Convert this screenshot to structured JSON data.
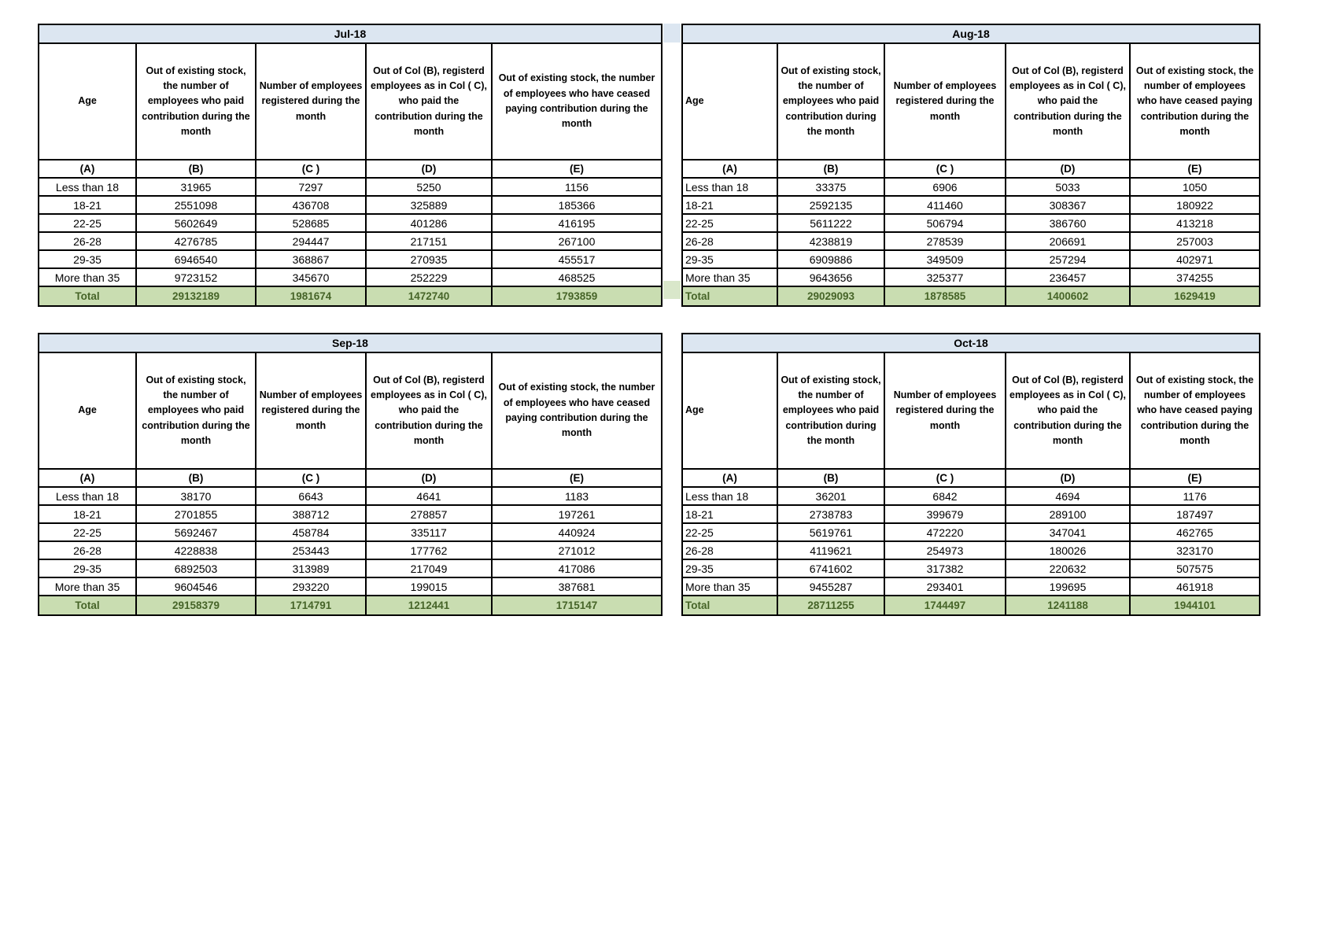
{
  "colors": {
    "title_bg": "#dce6f1",
    "total_bg": "#c9ddb1",
    "total_text": "#466428",
    "gap_total_strip": "#d9e7ca",
    "border": "#000000"
  },
  "table_template": {
    "age_header": "Age",
    "column_headers": [
      "Out of existing stock, the number of employees who paid contribution during the month",
      "Number of employees registered during the month",
      "Out of Col (B), registerd employees as in Col ( C), who paid the contribution during the month",
      "Out of existing stock, the number of employees who have ceased paying contribution during the month"
    ],
    "column_letters": [
      "(A)",
      "(B)",
      "(C )",
      "(D)",
      "(E)"
    ],
    "age_groups": [
      "Less than 18",
      "18-21",
      "22-25",
      "26-28",
      "29-35",
      "More than 35"
    ],
    "total_label": "Total"
  },
  "tables": [
    {
      "title": "Jul-18",
      "align": "center",
      "values": [
        [
          31965,
          7297,
          5250,
          1156
        ],
        [
          2551098,
          436708,
          325889,
          185366
        ],
        [
          5602649,
          528685,
          401286,
          416195
        ],
        [
          4276785,
          294447,
          217151,
          267100
        ],
        [
          6946540,
          368867,
          270935,
          455517
        ],
        [
          9723152,
          345670,
          252229,
          468525
        ]
      ],
      "totals": [
        29132189,
        1981674,
        1472740,
        1793859
      ]
    },
    {
      "title": "Aug-18",
      "align": "left",
      "values": [
        [
          33375,
          6906,
          5033,
          1050
        ],
        [
          2592135,
          411460,
          308367,
          180922
        ],
        [
          5611222,
          506794,
          386760,
          413218
        ],
        [
          4238819,
          278539,
          206691,
          257003
        ],
        [
          6909886,
          349509,
          257294,
          402971
        ],
        [
          9643656,
          325377,
          236457,
          374255
        ]
      ],
      "totals": [
        29029093,
        1878585,
        1400602,
        1629419
      ]
    },
    {
      "title": "Sep-18",
      "align": "center",
      "values": [
        [
          38170,
          6643,
          4641,
          1183
        ],
        [
          2701855,
          388712,
          278857,
          197261
        ],
        [
          5692467,
          458784,
          335117,
          440924
        ],
        [
          4228838,
          253443,
          177762,
          271012
        ],
        [
          6892503,
          313989,
          217049,
          417086
        ],
        [
          9604546,
          293220,
          199015,
          387681
        ]
      ],
      "totals": [
        29158379,
        1714791,
        1212441,
        1715147
      ]
    },
    {
      "title": "Oct-18",
      "align": "left",
      "values": [
        [
          36201,
          6842,
          4694,
          1176
        ],
        [
          2738783,
          399679,
          289100,
          187497
        ],
        [
          5619761,
          472220,
          347041,
          462765
        ],
        [
          4119621,
          254973,
          180026,
          323170
        ],
        [
          6741602,
          317382,
          220632,
          507575
        ],
        [
          9455287,
          293401,
          199695,
          461918
        ]
      ],
      "totals": [
        28711255,
        1744497,
        1241188,
        1944101
      ]
    }
  ]
}
